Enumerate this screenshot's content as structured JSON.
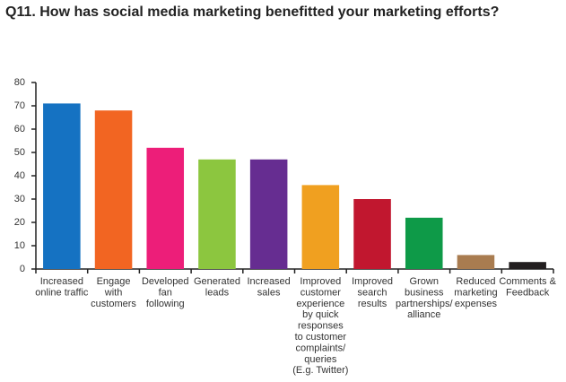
{
  "chart_data": {
    "type": "bar",
    "title": "Q11. How has social media marketing benefitted your marketing efforts?",
    "categories": [
      "Increased\nonline traffic",
      "Engage\nwith\ncustomers",
      "Developed\nfan\nfollowing",
      "Generated\nleads",
      "Increased\nsales",
      "Improved\ncustomer\nexperience\nby quick\nresponses\nto customer\ncomplaints/\nqueries\n(E.g. Twitter)",
      "Improved\nsearch\nresults",
      "Grown\nbusiness\npartnerships/\nalliance",
      "Reduced\nmarketing\nexpenses",
      "Comments &\nFeedback"
    ],
    "values": [
      71,
      68,
      52,
      47,
      47,
      36,
      30,
      22,
      6,
      3
    ],
    "colors": [
      "#1572c2",
      "#f26522",
      "#ed1e79",
      "#8cc63f",
      "#662d91",
      "#f0a020",
      "#c1172f",
      "#0e9a48",
      "#a97c50",
      "#231f20"
    ],
    "ylim": [
      0,
      80
    ],
    "yticks": [
      0,
      10,
      20,
      30,
      40,
      50,
      60,
      70,
      80
    ],
    "grid": false
  }
}
